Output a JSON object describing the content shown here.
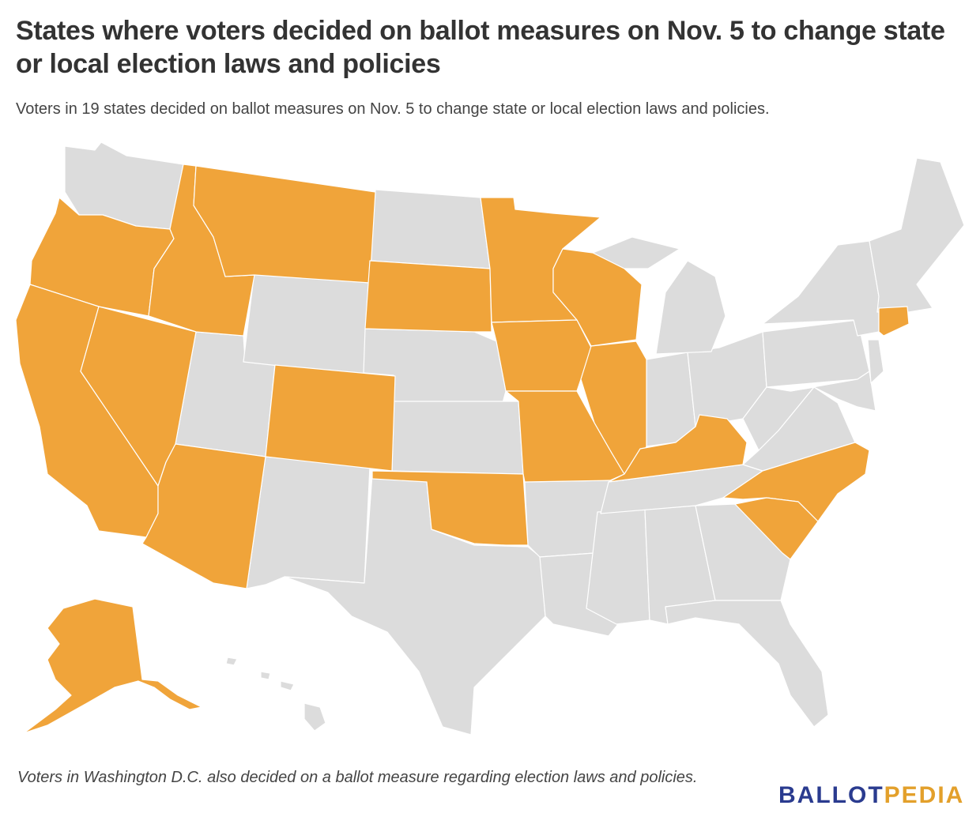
{
  "title": "States where voters decided on ballot measures on Nov. 5 to change state or local election laws and policies",
  "subtitle": "Voters in 19 states decided on ballot measures on Nov. 5 to change state or local election laws and policies.",
  "footnote": "Voters in Washington D.C. also decided on a ballot measure regarding election laws and policies.",
  "logo": {
    "part1": "BALLOT",
    "part2": "PEDIA"
  },
  "colors": {
    "highlight": "#f0a43a",
    "base": "#dcdcdc",
    "border": "#ffffff",
    "logo_primary": "#2a3b8f",
    "logo_accent": "#e3a02b"
  },
  "map": {
    "highlighted_states": [
      "Alaska",
      "Arizona",
      "California",
      "Colorado",
      "Connecticut",
      "Idaho",
      "Illinois",
      "Iowa",
      "Kentucky",
      "Minnesota",
      "Missouri",
      "Montana",
      "Nevada",
      "North Carolina",
      "Oklahoma",
      "Oregon",
      "South Carolina",
      "South Dakota",
      "Wisconsin"
    ],
    "other_states": [
      "Washington",
      "Utah",
      "Wyoming",
      "New Mexico",
      "Texas",
      "North Dakota",
      "Nebraska",
      "Kansas",
      "Arkansas",
      "Louisiana",
      "Mississippi",
      "Alabama",
      "Georgia",
      "Florida",
      "Tennessee",
      "Indiana",
      "Ohio",
      "Michigan",
      "Pennsylvania",
      "New York",
      "West Virginia",
      "Virginia",
      "Maryland",
      "Delaware",
      "New Jersey",
      "Massachusetts",
      "Rhode Island",
      "Vermont",
      "New Hampshire",
      "Maine",
      "Hawaii"
    ]
  }
}
